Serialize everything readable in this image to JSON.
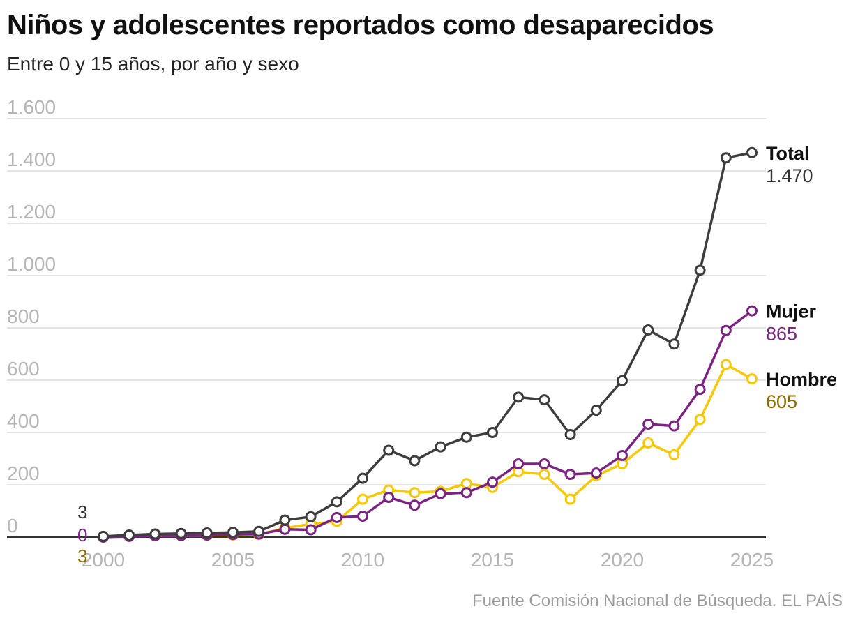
{
  "title": "Niños y adolescentes reportados como desaparecidos",
  "subtitle": "Entre 0 y 15 años, por año y sexo",
  "source": "Fuente Comisión Nacional de Búsqueda. EL PAÍS",
  "chart_data": {
    "type": "line",
    "x": [
      2000,
      2001,
      2002,
      2003,
      2004,
      2005,
      2006,
      2007,
      2008,
      2009,
      2010,
      2011,
      2012,
      2013,
      2014,
      2015,
      2016,
      2017,
      2018,
      2019,
      2020,
      2021,
      2022,
      2023,
      2024,
      2025
    ],
    "xticks": [
      2000,
      2005,
      2010,
      2015,
      2020,
      2025
    ],
    "xtick_labels": [
      "2000",
      "2005",
      "2010",
      "2015",
      "2020",
      "2025"
    ],
    "xlim": [
      1999.2,
      2026
    ],
    "ylim": [
      0,
      1600
    ],
    "yticks": [
      0,
      200,
      400,
      600,
      800,
      1000,
      1200,
      1400,
      1600
    ],
    "ytick_labels": [
      "0",
      "200",
      "400",
      "600",
      "800",
      "1.000",
      "1.200",
      "1.400",
      "1.600"
    ],
    "grid": true,
    "legend": "none (series labeled at line ends)",
    "xlabel": "",
    "ylabel": "",
    "series": [
      {
        "key": "hombre",
        "name": "Hombre",
        "end_label": "605",
        "start_label": "3",
        "color": "#f5c800",
        "label_color": "#8c6a00",
        "values": [
          3,
          4,
          5,
          6,
          7,
          8,
          10,
          35,
          50,
          60,
          145,
          180,
          170,
          175,
          205,
          190,
          250,
          240,
          145,
          235,
          280,
          360,
          315,
          450,
          660,
          605
        ]
      },
      {
        "key": "mujer",
        "name": "Mujer",
        "end_label": "865",
        "start_label": "0",
        "color": "#7b2382",
        "label_color": "#7b2382",
        "values": [
          0,
          3,
          5,
          6,
          8,
          10,
          12,
          30,
          28,
          75,
          80,
          152,
          122,
          166,
          170,
          210,
          280,
          280,
          240,
          245,
          312,
          432,
          425,
          565,
          790,
          865
        ]
      },
      {
        "key": "total",
        "name": "Total",
        "end_label": "1.470",
        "start_label": "3",
        "color": "#3d3d3d",
        "label_color": "#333333",
        "values": [
          3,
          8,
          12,
          14,
          16,
          18,
          22,
          65,
          78,
          135,
          225,
          332,
          292,
          345,
          382,
          400,
          535,
          525,
          392,
          485,
          598,
          792,
          738,
          1020,
          1450,
          1470
        ]
      }
    ]
  }
}
